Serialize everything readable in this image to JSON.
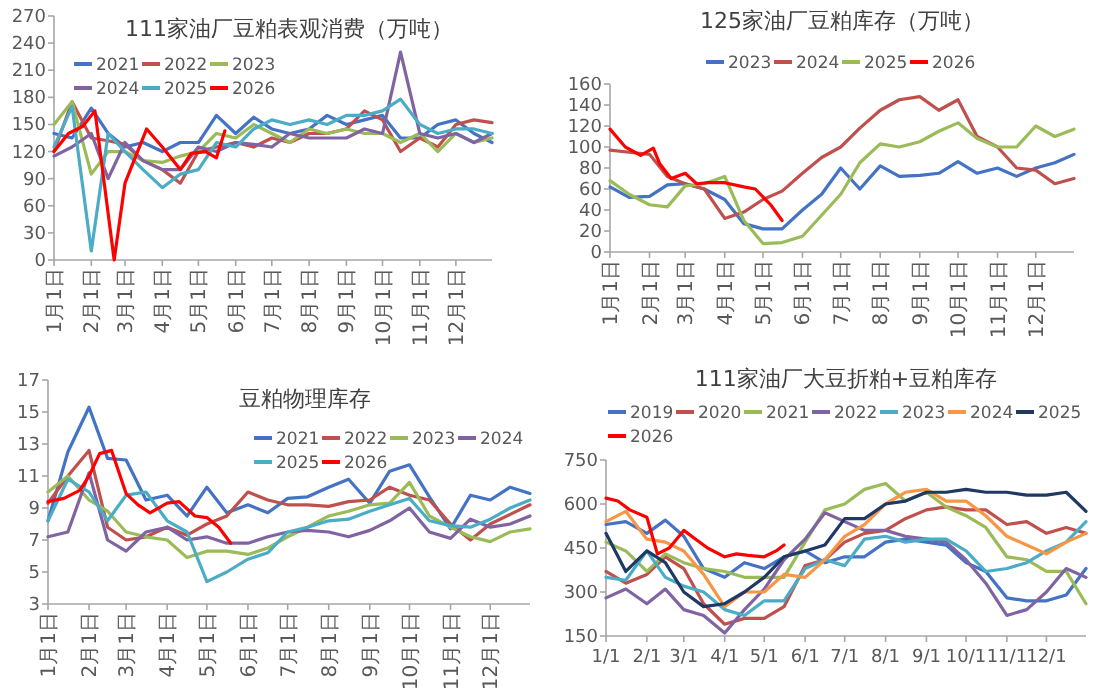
{
  "chart_data": [
    {
      "type": "line",
      "title": "111家油厂豆粕表观消费（万吨）",
      "legend": "top left",
      "x": [
        "--01-01",
        "--01-16",
        "--02-01",
        "--02-15",
        "--03-01",
        "--03-16",
        "--04-01",
        "--04-16",
        "--05-01",
        "--05-16",
        "--06-01",
        "--06-16",
        "--07-01",
        "--07-16",
        "--08-01",
        "--08-16",
        "--09-01",
        "--09-16",
        "--10-01",
        "--10-16",
        "--11-01",
        "--11-16",
        "--12-01",
        "--12-16",
        "--12-31"
      ],
      "xlim": [
        "--01-01",
        "--12-31"
      ],
      "ylim": [
        0,
        270
      ],
      "yticks": [
        0,
        30,
        60,
        90,
        120,
        150,
        180,
        210,
        240,
        270
      ],
      "xticks": [
        {
          "value": "--01-01",
          "label": "1月1日"
        },
        {
          "value": "--02-01",
          "label": "2月1日"
        },
        {
          "value": "--03-01",
          "label": "3月1日"
        },
        {
          "value": "--04-01",
          "label": "4月1日"
        },
        {
          "value": "--05-01",
          "label": "5月1日"
        },
        {
          "value": "--06-01",
          "label": "6月1日"
        },
        {
          "value": "--07-01",
          "label": "7月1日"
        },
        {
          "value": "--08-01",
          "label": "8月1日"
        },
        {
          "value": "--09-01",
          "label": "9月1日"
        },
        {
          "value": "--10-01",
          "label": "10月1日"
        },
        {
          "value": "--11-01",
          "label": "11月1日"
        },
        {
          "value": "--12-01",
          "label": "12月1日"
        }
      ],
      "series": [
        {
          "name": "2021",
          "color": "#4472c4",
          "values": [
            140,
            135,
            168,
            140,
            125,
            130,
            120,
            130,
            130,
            160,
            140,
            158,
            145,
            140,
            145,
            160,
            150,
            155,
            160,
            135,
            135,
            150,
            155,
            140,
            130
          ]
        },
        {
          "name": "2022",
          "color": "#c0504d",
          "values": [
            120,
            175,
            135,
            132,
            128,
            110,
            100,
            85,
            120,
            125,
            130,
            125,
            135,
            130,
            140,
            140,
            145,
            165,
            155,
            120,
            135,
            125,
            150,
            155,
            152
          ]
        },
        {
          "name": "2023",
          "color": "#9bbb59",
          "values": [
            150,
            175,
            95,
            120,
            120,
            110,
            108,
            115,
            120,
            140,
            135,
            150,
            140,
            130,
            145,
            140,
            145,
            140,
            140,
            130,
            140,
            120,
            140,
            130,
            135
          ]
        },
        {
          "name": "2024",
          "color": "#8064a2",
          "values": [
            115,
            125,
            140,
            90,
            130,
            110,
            100,
            100,
            125,
            120,
            130,
            128,
            125,
            140,
            135,
            135,
            135,
            145,
            140,
            230,
            140,
            135,
            140,
            130,
            140
          ]
        },
        {
          "name": "2025",
          "color": "#4bacc6",
          "values": [
            125,
            170,
            10,
            140,
            120,
            100,
            80,
            95,
            100,
            130,
            125,
            145,
            155,
            150,
            155,
            150,
            160,
            160,
            165,
            178,
            150,
            140,
            145,
            145,
            140
          ]
        },
        {
          "name": "2026",
          "color": "#ff0000",
          "x": [
            "--01-01",
            "--01-13",
            "--01-25",
            "--02-04",
            "--02-20",
            "--03-01",
            "--03-19",
            "--04-01",
            "--04-16",
            "--04-25",
            "--05-07",
            "--05-16",
            "--05-23"
          ],
          "values": [
            120,
            140,
            148,
            165,
            0,
            85,
            145,
            125,
            100,
            118,
            120,
            113,
            143
          ]
        }
      ]
    },
    {
      "type": "line",
      "title": "125家油厂豆粕库存（万吨）",
      "legend": "top",
      "x": [
        "--01-01",
        "--01-16",
        "--02-01",
        "--02-15",
        "--03-01",
        "--03-16",
        "--04-01",
        "--04-16",
        "--05-01",
        "--05-16",
        "--06-01",
        "--06-16",
        "--07-01",
        "--07-16",
        "--08-01",
        "--08-16",
        "--09-01",
        "--09-16",
        "--10-01",
        "--10-16",
        "--11-01",
        "--11-16",
        "--12-01",
        "--12-16",
        "--12-31"
      ],
      "xlim": [
        "--01-01",
        "--12-31"
      ],
      "ylim": [
        0,
        160
      ],
      "yticks": [
        0,
        20,
        40,
        60,
        80,
        100,
        120,
        140,
        160
      ],
      "xticks": [
        {
          "value": "--01-01",
          "label": "1月1日"
        },
        {
          "value": "--02-01",
          "label": "2月1日"
        },
        {
          "value": "--03-01",
          "label": "3月1日"
        },
        {
          "value": "--04-01",
          "label": "4月1日"
        },
        {
          "value": "--05-01",
          "label": "5月1日"
        },
        {
          "value": "--06-01",
          "label": "6月1日"
        },
        {
          "value": "--07-01",
          "label": "7月1日"
        },
        {
          "value": "--08-01",
          "label": "8月1日"
        },
        {
          "value": "--09-01",
          "label": "9月1日"
        },
        {
          "value": "--10-01",
          "label": "10月1日"
        },
        {
          "value": "--11-01",
          "label": "11月1日"
        },
        {
          "value": "--12-01",
          "label": "12月1日"
        }
      ],
      "series": [
        {
          "name": "2023",
          "color": "#4472c4",
          "values": [
            62,
            52,
            53,
            64,
            65,
            60,
            50,
            27,
            22,
            22,
            40,
            55,
            80,
            60,
            82,
            72,
            73,
            75,
            86,
            75,
            80,
            72,
            80,
            85,
            93
          ]
        },
        {
          "name": "2024",
          "color": "#c0504d",
          "values": [
            97,
            95,
            93,
            72,
            65,
            60,
            32,
            38,
            50,
            58,
            75,
            90,
            100,
            118,
            135,
            145,
            148,
            135,
            145,
            110,
            100,
            80,
            78,
            65,
            70
          ]
        },
        {
          "name": "2025",
          "color": "#9bbb59",
          "values": [
            68,
            55,
            45,
            43,
            63,
            65,
            72,
            30,
            8,
            9,
            15,
            35,
            55,
            85,
            103,
            100,
            105,
            115,
            123,
            108,
            100,
            100,
            120,
            110,
            117
          ]
        },
        {
          "name": "2026",
          "color": "#ff0000",
          "x": [
            "--01-01",
            "--01-13",
            "--01-25",
            "--02-04",
            "--02-09",
            "--02-18",
            "--03-01",
            "--03-10",
            "--03-19",
            "--04-01",
            "--04-16",
            "--04-25",
            "--05-07",
            "--05-16"
          ],
          "values": [
            117,
            100,
            92,
            99,
            84,
            70,
            75,
            65,
            66,
            66,
            62,
            60,
            45,
            30
          ]
        }
      ]
    },
    {
      "type": "line",
      "title": "豆粕物理库存",
      "legend": "top right",
      "x": [
        "--01-01",
        "--01-16",
        "--02-01",
        "--02-15",
        "--03-01",
        "--03-16",
        "--04-01",
        "--04-16",
        "--05-01",
        "--05-16",
        "--06-01",
        "--06-16",
        "--07-01",
        "--07-16",
        "--08-01",
        "--08-16",
        "--09-01",
        "--09-16",
        "--10-01",
        "--10-16",
        "--11-01",
        "--11-16",
        "--12-01",
        "--12-16",
        "--12-31"
      ],
      "xlim": [
        "--01-01",
        "--12-31"
      ],
      "ylim": [
        3,
        17
      ],
      "yticks": [
        3,
        5,
        7,
        9,
        11,
        13,
        15,
        17
      ],
      "xticks": [
        {
          "value": "--01-01",
          "label": "1月1日"
        },
        {
          "value": "--02-01",
          "label": "2月1日"
        },
        {
          "value": "--03-01",
          "label": "3月1日"
        },
        {
          "value": "--04-01",
          "label": "4月1日"
        },
        {
          "value": "--05-01",
          "label": "5月1日"
        },
        {
          "value": "--06-01",
          "label": "6月1日"
        },
        {
          "value": "--07-01",
          "label": "7月1日"
        },
        {
          "value": "--08-01",
          "label": "8月1日"
        },
        {
          "value": "--09-01",
          "label": "9月1日"
        },
        {
          "value": "--10-01",
          "label": "10月1日"
        },
        {
          "value": "--11-01",
          "label": "11月1日"
        },
        {
          "value": "--12-01",
          "label": "12月1日"
        }
      ],
      "series": [
        {
          "name": "2021",
          "color": "#4472c4",
          "values": [
            8.2,
            12.5,
            15.3,
            12.1,
            12,
            9.5,
            9.8,
            8.5,
            10.3,
            8.7,
            9.2,
            8.7,
            9.6,
            9.7,
            10.3,
            10.8,
            9.3,
            11.3,
            11.7,
            9.7,
            7.7,
            9.8,
            9.5,
            10.3,
            9.9
          ]
        },
        {
          "name": "2022",
          "color": "#c0504d",
          "values": [
            9.3,
            11,
            12.6,
            7.8,
            7,
            7.2,
            7.8,
            7.3,
            8,
            8.5,
            10,
            9.5,
            9.2,
            9.2,
            9.1,
            9.4,
            9.5,
            10.3,
            9.8,
            9.5,
            8,
            7,
            8,
            8.6,
            9.2
          ]
        },
        {
          "name": "2023",
          "color": "#9bbb59",
          "values": [
            10,
            11,
            9.5,
            8.8,
            7.5,
            7.2,
            7,
            5.9,
            6.3,
            6.3,
            6.1,
            6.5,
            7.2,
            7.8,
            8.5,
            8.8,
            9.2,
            9.3,
            10.6,
            8.5,
            7.8,
            7.2,
            6.9,
            7.5,
            7.7
          ]
        },
        {
          "name": "2024",
          "color": "#8064a2",
          "values": [
            7.2,
            7.5,
            11.2,
            7,
            6.3,
            7.5,
            7.8,
            7,
            7.2,
            6.8,
            6.8,
            7.2,
            7.5,
            7.6,
            7.5,
            7.2,
            7.6,
            8.2,
            9,
            7.5,
            7.1,
            8.3,
            7.8,
            8,
            8.5
          ]
        },
        {
          "name": "2025",
          "color": "#4bacc6",
          "values": [
            8.2,
            10.8,
            10,
            8.2,
            9.8,
            10,
            8.2,
            7.5,
            4.4,
            5,
            5.8,
            6.2,
            7.5,
            7.8,
            8.2,
            8.3,
            8.8,
            9.2,
            9.6,
            8.2,
            7.9,
            7.8,
            8.3,
            9,
            9.5
          ]
        },
        {
          "name": "2026",
          "color": "#ff0000",
          "x": [
            "--01-01",
            "--01-13",
            "--01-25",
            "--02-01",
            "--02-09",
            "--02-18",
            "--03-01",
            "--03-10",
            "--03-19",
            "--04-01",
            "--04-10",
            "--04-22",
            "--05-01",
            "--05-10",
            "--05-19"
          ],
          "values": [
            9.4,
            9.6,
            10.1,
            11,
            12.4,
            12.6,
            9.9,
            9.2,
            8.7,
            9.3,
            9.4,
            8.5,
            8.4,
            7.8,
            6.8
          ]
        }
      ]
    },
    {
      "type": "line",
      "title": "111家油厂大豆折粕+豆粕库存",
      "legend": "top",
      "x": [
        "--01-01",
        "--01-16",
        "--02-01",
        "--02-15",
        "--03-01",
        "--03-16",
        "--04-01",
        "--04-16",
        "--05-01",
        "--05-16",
        "--06-01",
        "--06-16",
        "--07-01",
        "--07-16",
        "--08-01",
        "--08-16",
        "--09-01",
        "--09-16",
        "--10-01",
        "--10-16",
        "--11-01",
        "--11-16",
        "--12-01",
        "--12-16",
        "--12-31"
      ],
      "xlim": [
        "--01-01",
        "--12-31"
      ],
      "ylim": [
        150,
        750
      ],
      "yticks": [
        150,
        300,
        450,
        600,
        750
      ],
      "xticks": [
        {
          "value": "--01-01",
          "label": "1/1"
        },
        {
          "value": "--02-01",
          "label": "2/1"
        },
        {
          "value": "--03-01",
          "label": "3/1"
        },
        {
          "value": "--04-01",
          "label": "4/1"
        },
        {
          "value": "--05-01",
          "label": "5/1"
        },
        {
          "value": "--06-01",
          "label": "6/1"
        },
        {
          "value": "--07-01",
          "label": "7/1"
        },
        {
          "value": "--08-01",
          "label": "8/1"
        },
        {
          "value": "--09-01",
          "label": "9/1"
        },
        {
          "value": "--10-01",
          "label": "10/1"
        },
        {
          "value": "--11-01",
          "label": "11/1"
        },
        {
          "value": "--12-01",
          "label": "12/1"
        }
      ],
      "series": [
        {
          "name": "2019",
          "color": "#4472c4",
          "values": [
            530,
            540,
            500,
            545,
            490,
            380,
            350,
            400,
            380,
            420,
            440,
            400,
            420,
            420,
            470,
            480,
            470,
            460,
            400,
            370,
            280,
            270,
            270,
            290,
            380
          ]
        },
        {
          "name": "2020",
          "color": "#c0504d",
          "values": [
            370,
            330,
            360,
            420,
            380,
            260,
            190,
            210,
            210,
            250,
            390,
            410,
            470,
            500,
            510,
            550,
            580,
            590,
            580,
            580,
            530,
            540,
            500,
            520,
            500
          ]
        },
        {
          "name": "2021",
          "color": "#9bbb59",
          "values": [
            470,
            440,
            370,
            430,
            400,
            380,
            370,
            350,
            350,
            350,
            470,
            580,
            600,
            650,
            670,
            610,
            640,
            590,
            560,
            520,
            420,
            410,
            370,
            370,
            260
          ]
        },
        {
          "name": "2022",
          "color": "#8064a2",
          "values": [
            280,
            310,
            260,
            310,
            240,
            220,
            160,
            240,
            310,
            410,
            480,
            570,
            540,
            510,
            510,
            490,
            480,
            470,
            410,
            330,
            220,
            240,
            300,
            380,
            350
          ]
        },
        {
          "name": "2023",
          "color": "#4bacc6",
          "values": [
            350,
            340,
            440,
            350,
            320,
            300,
            240,
            220,
            270,
            270,
            380,
            410,
            390,
            480,
            490,
            470,
            480,
            480,
            440,
            370,
            380,
            400,
            440,
            470,
            540
          ]
        },
        {
          "name": "2024",
          "color": "#f79646",
          "values": [
            540,
            575,
            480,
            470,
            440,
            360,
            250,
            300,
            300,
            360,
            350,
            410,
            490,
            530,
            600,
            640,
            650,
            610,
            610,
            560,
            490,
            460,
            430,
            470,
            500
          ]
        },
        {
          "name": "2025",
          "color": "#1f3864",
          "values": [
            500,
            370,
            440,
            400,
            300,
            250,
            260,
            300,
            350,
            420,
            440,
            460,
            550,
            550,
            600,
            610,
            640,
            640,
            650,
            640,
            640,
            630,
            630,
            640,
            575
          ]
        },
        {
          "name": "2026",
          "color": "#ff0000",
          "x": [
            "--01-01",
            "--01-10",
            "--01-19",
            "--02-01",
            "--02-09",
            "--02-18",
            "--03-01",
            "--03-10",
            "--03-19",
            "--04-01",
            "--04-10",
            "--04-19",
            "--05-01",
            "--05-10",
            "--05-16"
          ],
          "values": [
            620,
            610,
            580,
            555,
            430,
            450,
            510,
            480,
            450,
            420,
            430,
            425,
            420,
            440,
            460
          ]
        }
      ]
    }
  ]
}
